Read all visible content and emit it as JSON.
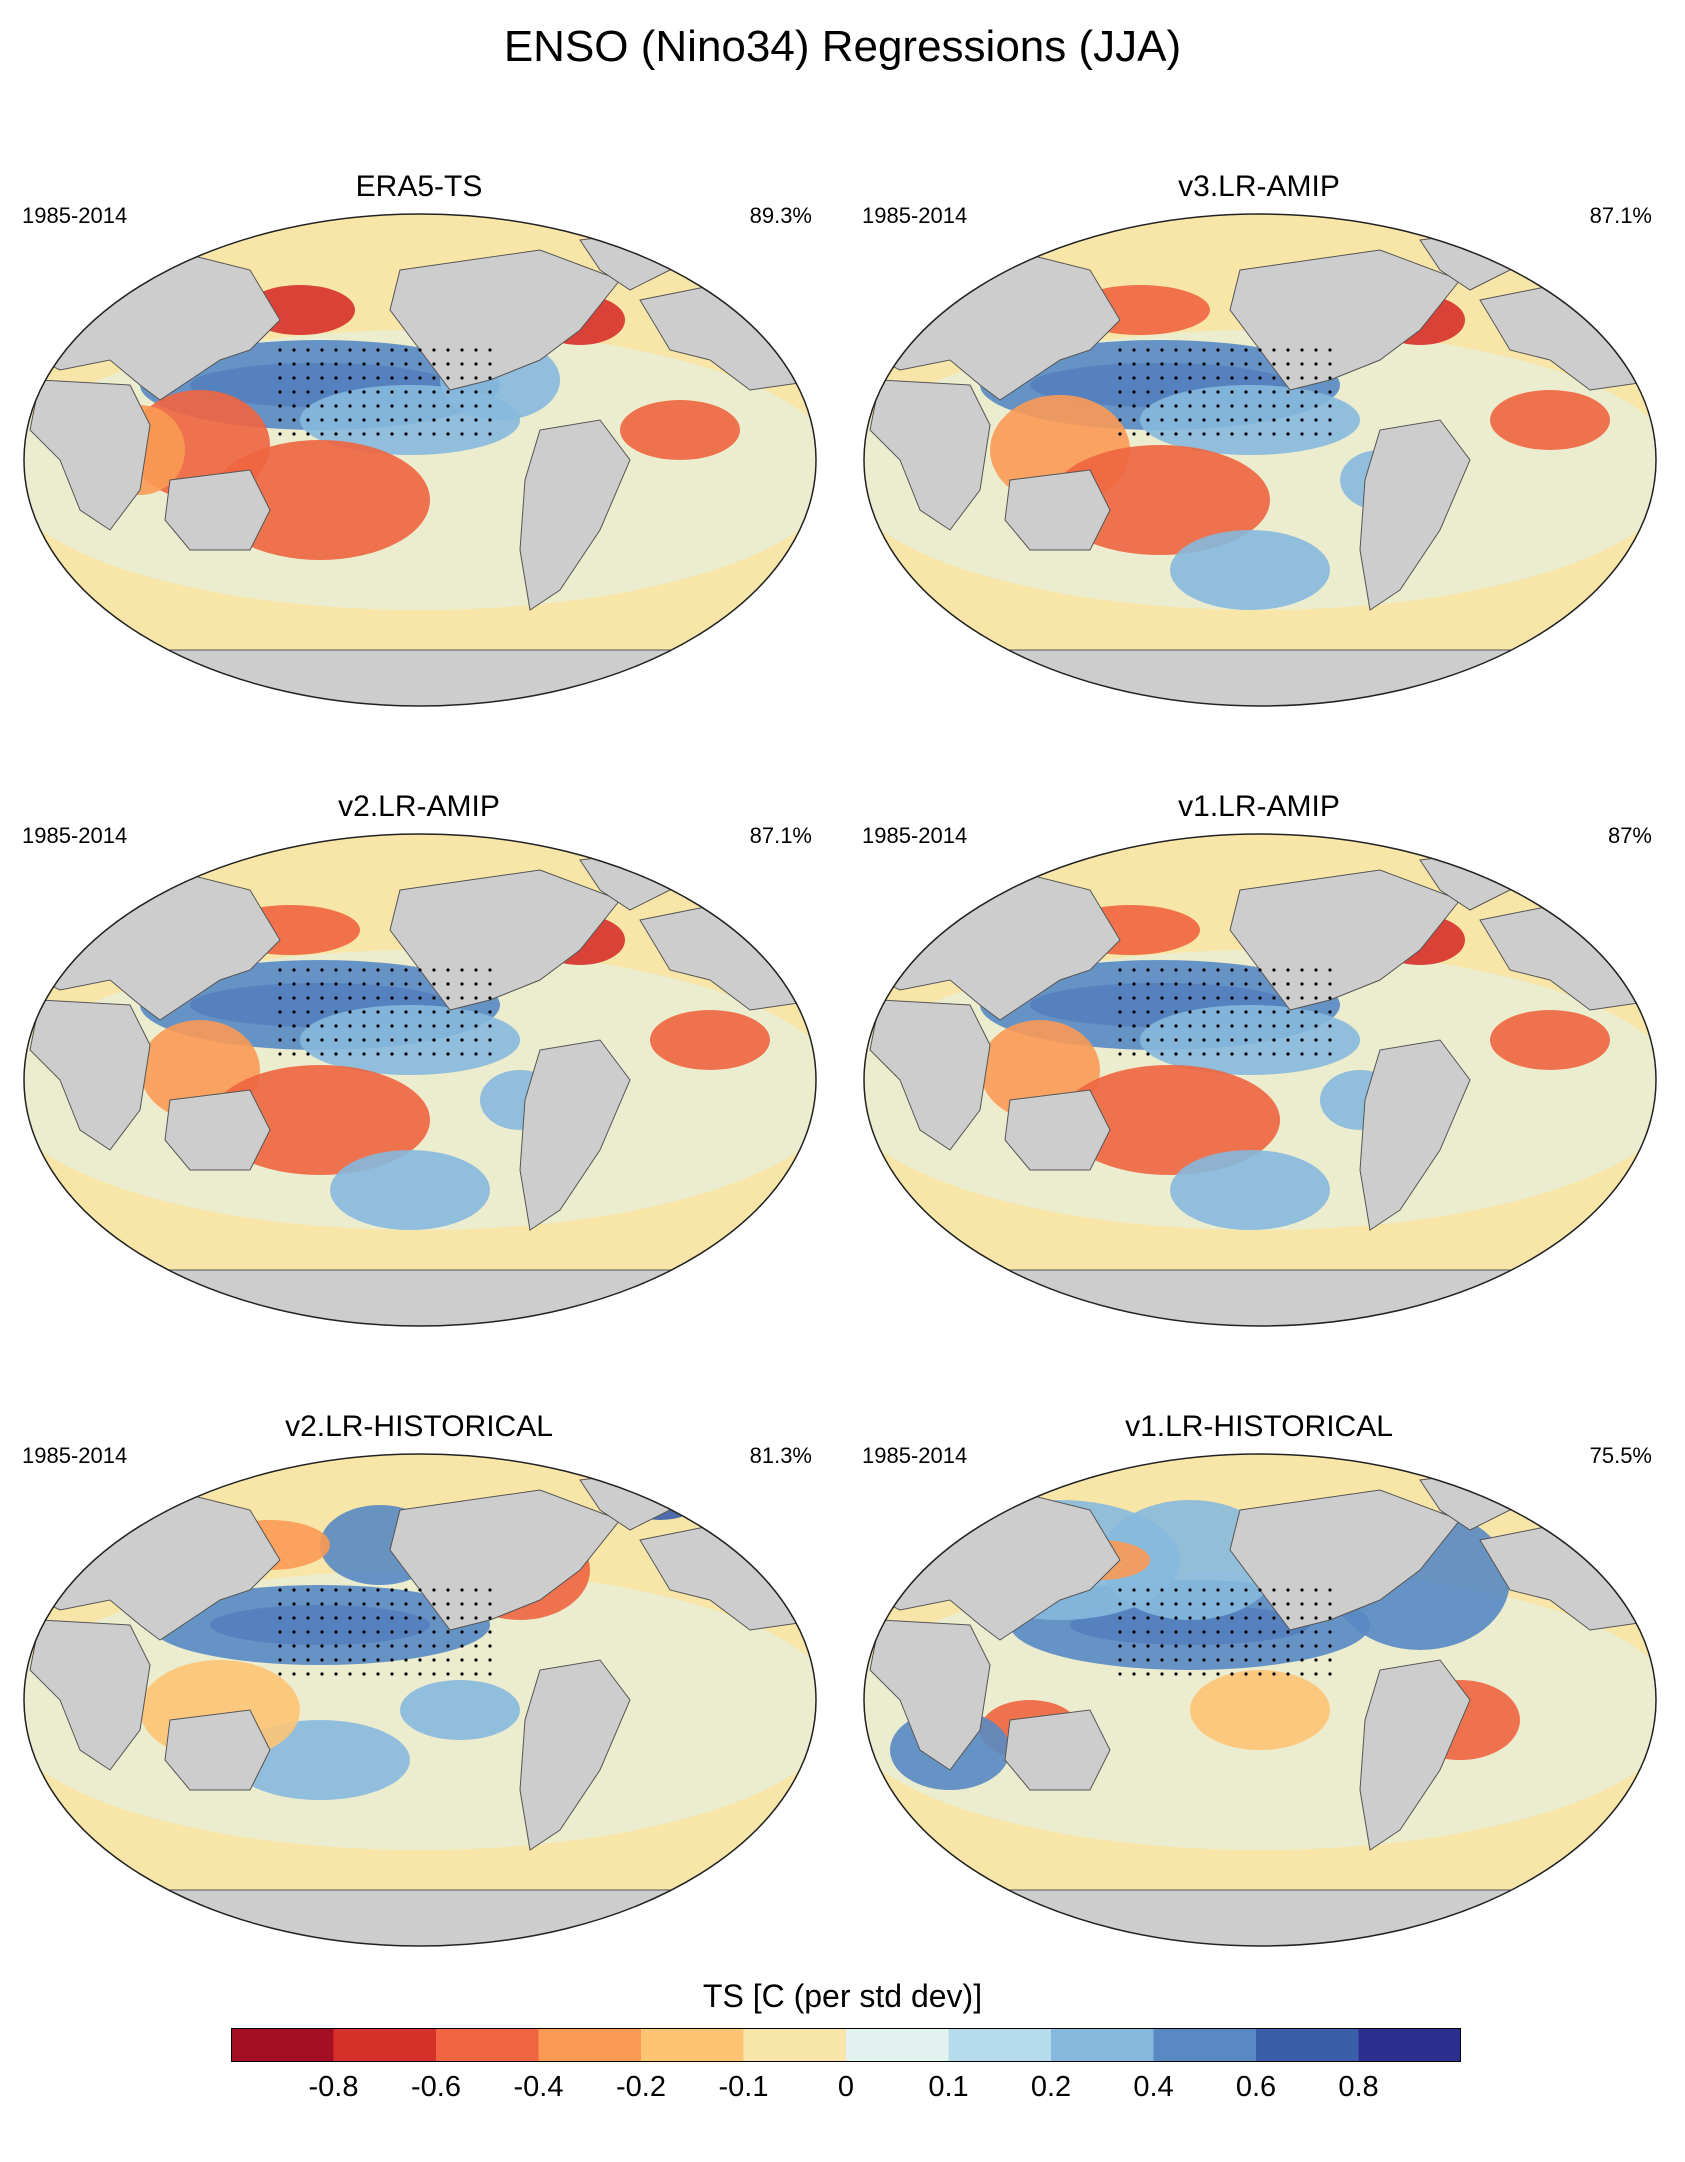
{
  "title": "ENSO (Nino34) Regressions (JJA)",
  "panels": [
    {
      "title": "ERA5-TS",
      "years": "1985-2014",
      "percent": "89.3%"
    },
    {
      "title": "v3.LR-AMIP",
      "years": "1985-2014",
      "percent": "87.1%"
    },
    {
      "title": "v2.LR-AMIP",
      "years": "1985-2014",
      "percent": "87.1%"
    },
    {
      "title": "v1.LR-AMIP",
      "years": "1985-2014",
      "percent": "87%"
    },
    {
      "title": "v2.LR-HISTORICAL",
      "years": "1985-2014",
      "percent": "81.3%"
    },
    {
      "title": "v1.LR-HISTORICAL",
      "years": "1985-2014",
      "percent": "75.5%"
    }
  ],
  "colorbar": {
    "title": "TS [C (per std dev)]",
    "ticks": [
      "-0.8",
      "-0.6",
      "-0.4",
      "-0.2",
      "-0.1",
      "0",
      "0.1",
      "0.2",
      "0.4",
      "0.6",
      "0.8"
    ],
    "colors": [
      "#a50f24",
      "#d6302a",
      "#f0653f",
      "#fb9a55",
      "#fdc474",
      "#f8e5a8",
      "#e2f2ef",
      "#b5dcec",
      "#86b9dd",
      "#5889c3",
      "#3b5eab",
      "#2b2f8f"
    ]
  },
  "land_color": "#cdcdcd",
  "ocean_neutral_color": "#f8e5a8"
}
